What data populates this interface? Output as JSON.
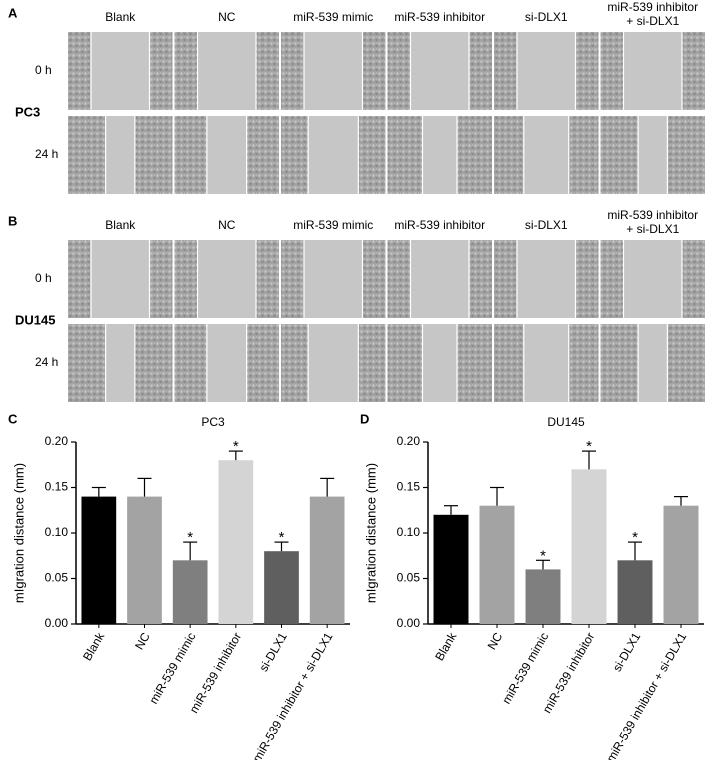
{
  "panels": [
    {
      "label": "A",
      "cell_line": "PC3",
      "rows": [
        "0 h",
        "24 h"
      ],
      "headers": [
        [
          "Blank"
        ],
        [
          "NC"
        ],
        [
          "miR-539 mimic"
        ],
        [
          "miR-539 inhibitor"
        ],
        [
          "si-DLX1"
        ],
        [
          "miR-539 inhibitor",
          "+ si-DLX1"
        ]
      ]
    },
    {
      "label": "B",
      "cell_line": "DU145",
      "rows": [
        "0 h",
        "24 h"
      ],
      "headers": [
        [
          "Blank"
        ],
        [
          "NC"
        ],
        [
          "miR-539 mimic"
        ],
        [
          "miR-539 inhibitor"
        ],
        [
          "si-DLX1"
        ],
        [
          "miR-539 inhibitor",
          "+ si-DLX1"
        ]
      ]
    }
  ],
  "chart_data": [
    {
      "type": "bar",
      "panel_label": "C",
      "title": "PC3",
      "y_label": "mIgration distance (mm)",
      "categories": [
        "Blank",
        "NC",
        "miR-539 mimic",
        "miR-539 inhibitor",
        "si-DLX1",
        "miR-539 inhibitor + si-DLX1"
      ],
      "values": [
        0.14,
        0.14,
        0.07,
        0.18,
        0.08,
        0.14
      ],
      "errors": [
        0.01,
        0.02,
        0.02,
        0.01,
        0.01,
        0.02
      ],
      "significance": [
        null,
        null,
        "*",
        "*",
        "*",
        null
      ],
      "colors": [
        "#000000",
        "#a3a3a3",
        "#7f7f7f",
        "#d4d4d4",
        "#5f5f5f",
        "#a3a3a3"
      ],
      "ylim": [
        0,
        0.2
      ],
      "yticks": [
        {
          "value": 0,
          "label": "0.00"
        },
        {
          "value": 0.05,
          "label": "0.05"
        },
        {
          "value": 0.1,
          "label": "0.10"
        },
        {
          "value": 0.15,
          "label": "0.15"
        },
        {
          "value": 0.2,
          "label": "0.20"
        }
      ]
    },
    {
      "type": "bar",
      "panel_label": "D",
      "title": "DU145",
      "y_label": "mIgration distance (mm)",
      "categories": [
        "Blank",
        "NC",
        "miR-539 mimic",
        "miR-539 inhibitor",
        "si-DLX1",
        "miR-539 inhibitor + si-DLX1"
      ],
      "values": [
        0.12,
        0.13,
        0.06,
        0.17,
        0.07,
        0.13
      ],
      "errors": [
        0.01,
        0.02,
        0.01,
        0.02,
        0.02,
        0.01
      ],
      "significance": [
        null,
        null,
        "*",
        "*",
        "*",
        null
      ],
      "colors": [
        "#000000",
        "#a3a3a3",
        "#7f7f7f",
        "#d4d4d4",
        "#5f5f5f",
        "#a3a3a3"
      ],
      "ylim": [
        0,
        0.2
      ],
      "yticks": [
        {
          "value": 0,
          "label": "0.00"
        },
        {
          "value": 0.05,
          "label": "0.05"
        },
        {
          "value": 0.1,
          "label": "0.10"
        },
        {
          "value": 0.15,
          "label": "0.15"
        },
        {
          "value": 0.2,
          "label": "0.20"
        }
      ]
    }
  ]
}
